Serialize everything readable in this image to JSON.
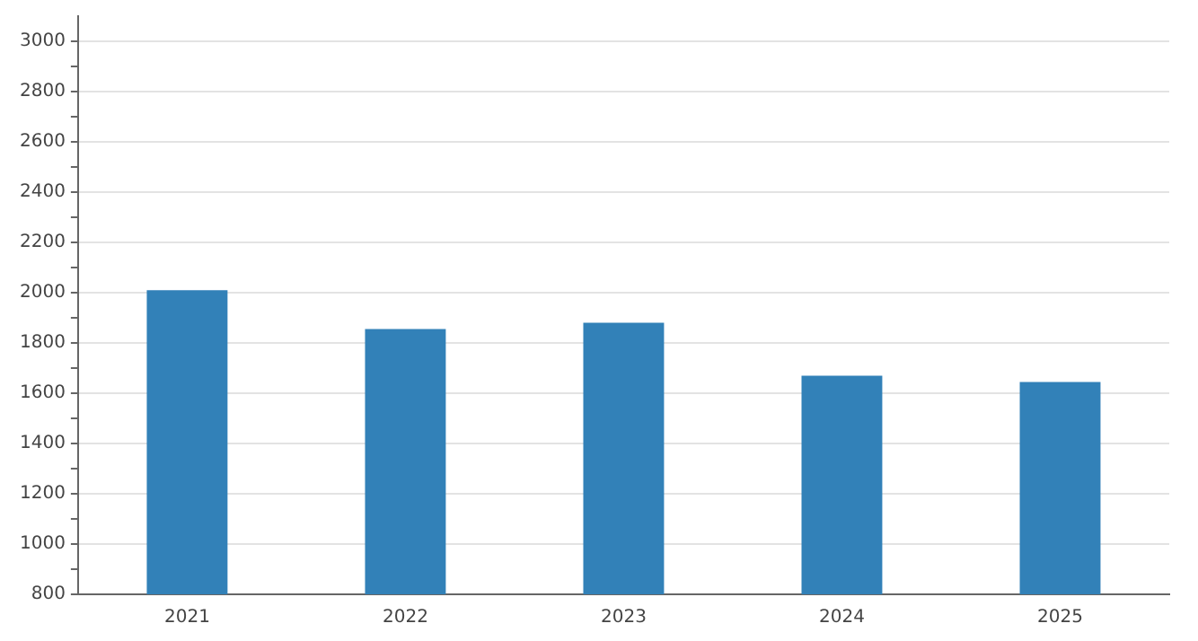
{
  "chart_data": {
    "type": "bar",
    "categories": [
      "2021",
      "2022",
      "2023",
      "2024",
      "2025"
    ],
    "values": [
      2010,
      1855,
      1880,
      1670,
      1645
    ],
    "color": "#3281b8",
    "ylim": [
      800,
      3100
    ],
    "yticks": [
      800,
      {
        "value": 900,
        "label": null
      },
      1000,
      {
        "value": 1100,
        "label": null
      },
      1200,
      {
        "value": 1300,
        "label": null
      },
      1400,
      {
        "value": 1500,
        "label": null
      },
      1600,
      {
        "value": 1700,
        "label": null
      },
      1800,
      {
        "value": 1900,
        "label": null
      },
      2000,
      {
        "value": 2100,
        "label": null
      },
      2200,
      {
        "value": 2300,
        "label": null
      },
      2400,
      {
        "value": 2500,
        "label": null
      },
      2600,
      {
        "value": 2700,
        "label": null
      },
      2800,
      {
        "value": 2900,
        "label": null
      },
      3000
    ],
    "grid": "y"
  }
}
